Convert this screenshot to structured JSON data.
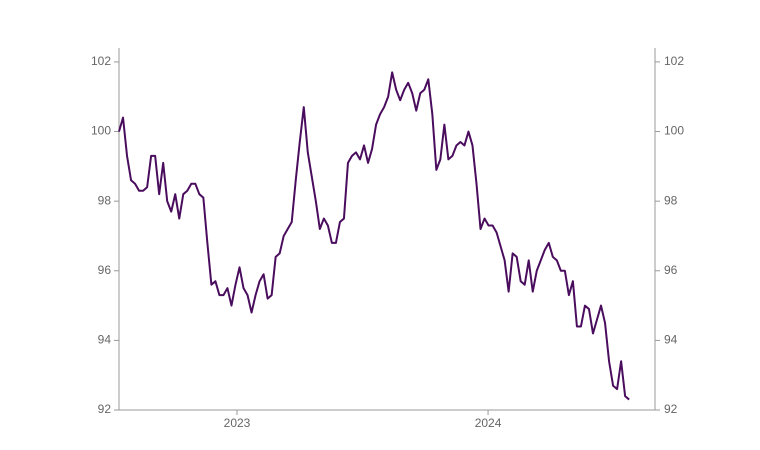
{
  "chart_data": {
    "type": "line",
    "x": [
      2022.53,
      2022.546,
      2022.562,
      2022.578,
      2022.594,
      2022.61,
      2022.626,
      2022.642,
      2022.658,
      2022.674,
      2022.69,
      2022.706,
      2022.722,
      2022.738,
      2022.754,
      2022.77,
      2022.786,
      2022.802,
      2022.818,
      2022.834,
      2022.85,
      2022.866,
      2022.882,
      2022.898,
      2022.914,
      2022.93,
      2022.946,
      2022.962,
      2022.978,
      2022.994,
      2023.01,
      2023.026,
      2023.042,
      2023.058,
      2023.074,
      2023.09,
      2023.106,
      2023.122,
      2023.138,
      2023.154,
      2023.17,
      2023.186,
      2023.202,
      2023.218,
      2023.234,
      2023.25,
      2023.266,
      2023.282,
      2023.298,
      2023.314,
      2023.33,
      2023.346,
      2023.362,
      2023.378,
      2023.394,
      2023.41,
      2023.426,
      2023.442,
      2023.458,
      2023.474,
      2023.49,
      2023.506,
      2023.522,
      2023.538,
      2023.554,
      2023.57,
      2023.586,
      2023.602,
      2023.618,
      2023.634,
      2023.65,
      2023.666,
      2023.682,
      2023.698,
      2023.714,
      2023.73,
      2023.746,
      2023.762,
      2023.778,
      2023.794,
      2023.81,
      2023.826,
      2023.842,
      2023.858,
      2023.874,
      2023.89,
      2023.906,
      2023.922,
      2023.938,
      2023.954,
      2023.97,
      2023.986,
      2024.002,
      2024.018,
      2024.034,
      2024.05,
      2024.066,
      2024.082,
      2024.098,
      2024.114,
      2024.13,
      2024.146,
      2024.162,
      2024.178,
      2024.194,
      2024.21,
      2024.226,
      2024.242,
      2024.258,
      2024.274,
      2024.29,
      2024.306,
      2024.322,
      2024.338,
      2024.354,
      2024.37,
      2024.386,
      2024.402,
      2024.418,
      2024.434,
      2024.45,
      2024.466,
      2024.482,
      2024.498,
      2024.514,
      2024.53,
      2024.546,
      2024.562
    ],
    "values": [
      100.0,
      100.4,
      99.3,
      98.6,
      98.5,
      98.3,
      98.3,
      98.4,
      99.3,
      99.3,
      98.2,
      99.1,
      98.0,
      97.7,
      98.2,
      97.5,
      98.2,
      98.3,
      98.5,
      98.5,
      98.2,
      98.1,
      96.8,
      95.6,
      95.7,
      95.3,
      95.3,
      95.5,
      95.0,
      95.6,
      96.1,
      95.5,
      95.3,
      94.8,
      95.3,
      95.7,
      95.9,
      95.2,
      95.3,
      96.4,
      96.5,
      97.0,
      97.2,
      97.4,
      98.6,
      99.7,
      100.7,
      99.4,
      98.7,
      98.0,
      97.2,
      97.5,
      97.3,
      96.8,
      96.8,
      97.4,
      97.5,
      99.1,
      99.3,
      99.4,
      99.2,
      99.6,
      99.1,
      99.5,
      100.2,
      100.5,
      100.7,
      101.0,
      101.7,
      101.2,
      100.9,
      101.2,
      101.4,
      101.1,
      100.6,
      101.1,
      101.2,
      101.5,
      100.5,
      98.9,
      99.2,
      100.2,
      99.2,
      99.3,
      99.6,
      99.7,
      99.6,
      100.0,
      99.6,
      98.5,
      97.2,
      97.5,
      97.3,
      97.3,
      97.1,
      96.7,
      96.3,
      95.4,
      96.5,
      96.4,
      95.7,
      95.6,
      96.3,
      95.4,
      96.0,
      96.3,
      96.6,
      96.8,
      96.4,
      96.3,
      96.0,
      96.0,
      95.3,
      95.7,
      94.4,
      94.4,
      95.0,
      94.9,
      94.2,
      94.6,
      95.0,
      94.5,
      93.4,
      92.7,
      92.6,
      93.4,
      92.4,
      92.3
    ],
    "color": "#4a0d5e",
    "xlim": [
      2022.53,
      2024.665
    ],
    "xticks": [
      2023,
      2024
    ],
    "ylim": [
      92,
      102.4
    ],
    "yticks": [
      92,
      94,
      96,
      98,
      100,
      102
    ],
    "y2lim": [
      92,
      102.4
    ],
    "y2ticks": [
      92,
      94,
      96,
      98,
      100,
      102
    ]
  }
}
